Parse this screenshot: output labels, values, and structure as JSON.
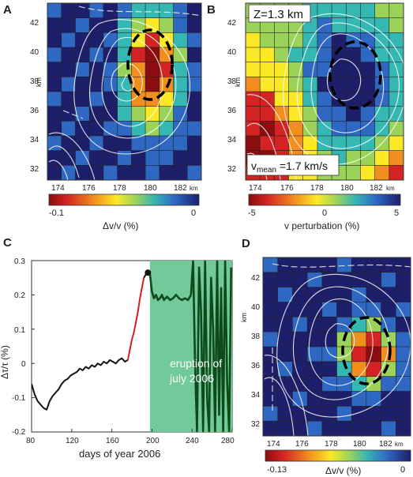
{
  "panels": {
    "A": {
      "label": "A",
      "y_ticks": [
        "42",
        "40",
        "38",
        "36",
        "34",
        "32"
      ],
      "y_unit": "km",
      "x_ticks": [
        "174",
        "176",
        "178",
        "180",
        "182"
      ],
      "x_unit": "km",
      "colorbar": {
        "min_label": "-0.1",
        "max_label": "0",
        "title": "Δv/v  (%)"
      }
    },
    "B": {
      "label": "B",
      "depth_label": "Z=1.3 km",
      "vmean_label": "v",
      "vmean_sub": "mean",
      "vmean_value": " =1.7 km/s",
      "y_ticks": [
        "42",
        "40",
        "38",
        "36",
        "34",
        "32"
      ],
      "y_unit": "km",
      "x_ticks": [
        "174",
        "176",
        "178",
        "180",
        "182"
      ],
      "x_unit": "km",
      "colorbar": {
        "min_label": "-5",
        "mid_label": "0",
        "max_label": "5",
        "title": "v perturbation (%)"
      }
    },
    "C": {
      "label": "C",
      "ylabel": "Δτ/τ  (%)",
      "xlabel": "days of year 2006",
      "eruption_line1": "eruption of",
      "eruption_line2": "july 2006",
      "y_ticks": [
        "0.3",
        "0.2",
        "0.1",
        "0",
        "-0.1",
        "-0.2"
      ],
      "x_ticks": [
        "80",
        "120",
        "160",
        "200",
        "240",
        "280"
      ]
    },
    "D": {
      "label": "D",
      "y_ticks": [
        "42",
        "40",
        "38",
        "36",
        "34",
        "32"
      ],
      "y_unit": "km",
      "x_ticks": [
        "174",
        "176",
        "178",
        "180",
        "182"
      ],
      "x_unit": "km",
      "colorbar": {
        "min_label": "-0.13",
        "max_label": "0",
        "title": "Δv/v (%)"
      }
    }
  },
  "chart_data": {
    "type": "line",
    "xlabel": "days of year 2006",
    "ylabel": "Δτ/τ  (%)",
    "xlim": [
      80,
      280
    ],
    "ylim": [
      -0.2,
      0.3
    ],
    "eruption_window": [
      198,
      280
    ],
    "colors": {
      "pre": "#111111",
      "precursor": "#d42020",
      "eruption": "#0f4a1a",
      "shade": "#72c99a"
    },
    "series": [
      {
        "color": "pre",
        "x": [
          80,
          83,
          86,
          89,
          92,
          95,
          98,
          101,
          104,
          107,
          110,
          113,
          116,
          119,
          122,
          125,
          128,
          131,
          134,
          137,
          140,
          143,
          146,
          149,
          152,
          155,
          158,
          161,
          164,
          167,
          170,
          173,
          176
        ],
        "y": [
          -0.06,
          -0.09,
          -0.11,
          -0.12,
          -0.13,
          -0.135,
          -0.11,
          -0.095,
          -0.085,
          -0.075,
          -0.06,
          -0.05,
          -0.045,
          -0.035,
          -0.03,
          -0.025,
          -0.015,
          -0.02,
          -0.01,
          -0.015,
          -0.005,
          -0.01,
          0.0,
          -0.005,
          0.005,
          0.0,
          0.01,
          0.005,
          0.0,
          0.01,
          0.015,
          0.005,
          0.01
        ]
      },
      {
        "color": "precursor",
        "x": [
          176,
          178,
          180,
          182,
          184,
          186,
          188,
          190,
          192
        ],
        "y": [
          0.01,
          0.04,
          0.07,
          0.09,
          0.12,
          0.15,
          0.19,
          0.22,
          0.25
        ]
      },
      {
        "color": "pre",
        "x": [
          192,
          194,
          196
        ],
        "y": [
          0.25,
          0.26,
          0.265
        ]
      },
      {
        "color": "eruption",
        "x": [
          198,
          200,
          202,
          204,
          206,
          208,
          210,
          212,
          215,
          218,
          221,
          224,
          227,
          230,
          233,
          236,
          239
        ],
        "y": [
          0.26,
          0.21,
          0.19,
          0.2,
          0.185,
          0.19,
          0.2,
          0.185,
          0.195,
          0.185,
          0.19,
          0.2,
          0.19,
          0.185,
          0.19,
          0.185,
          0.2
        ]
      },
      {
        "color": "eruption",
        "x": [
          239,
          241,
          243,
          245,
          247,
          249,
          251,
          253,
          255,
          257,
          259,
          261,
          263,
          265,
          267,
          269,
          271,
          273,
          275,
          277,
          279
        ],
        "y": [
          0.2,
          0.3,
          0.0,
          -0.2,
          0.28,
          0.15,
          -0.2,
          0.3,
          -0.1,
          -0.2,
          0.25,
          0.1,
          -0.2,
          0.3,
          -0.15,
          0.22,
          -0.2,
          0.3,
          -0.05,
          -0.2,
          0.28
        ]
      }
    ],
    "marker": {
      "x": 196,
      "y": 0.265
    }
  }
}
